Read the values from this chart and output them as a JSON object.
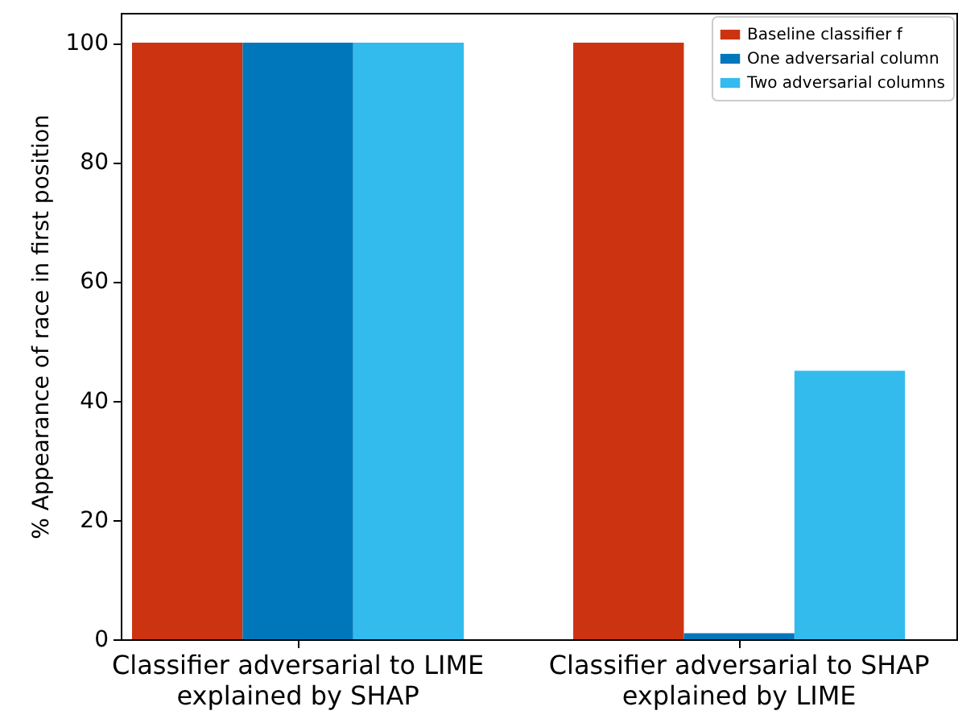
{
  "chart_data": {
    "type": "bar",
    "ylabel": "% Appearance of race in first position",
    "categories": [
      "Classifier adversarial to LIME\nexplained by SHAP",
      "Classifier adversarial to SHAP\nexplained by LIME"
    ],
    "series": [
      {
        "name": "Baseline classifier f",
        "color": "#cc3311",
        "values": [
          100,
          100
        ]
      },
      {
        "name": "One adversarial column",
        "color": "#0077bb",
        "values": [
          100,
          1
        ]
      },
      {
        "name": "Two adversarial columns",
        "color": "#33bbee",
        "values": [
          100,
          45
        ]
      }
    ],
    "ylim": [
      0,
      105
    ],
    "yticks": [
      0,
      20,
      40,
      60,
      80,
      100
    ],
    "legend": "top right"
  }
}
